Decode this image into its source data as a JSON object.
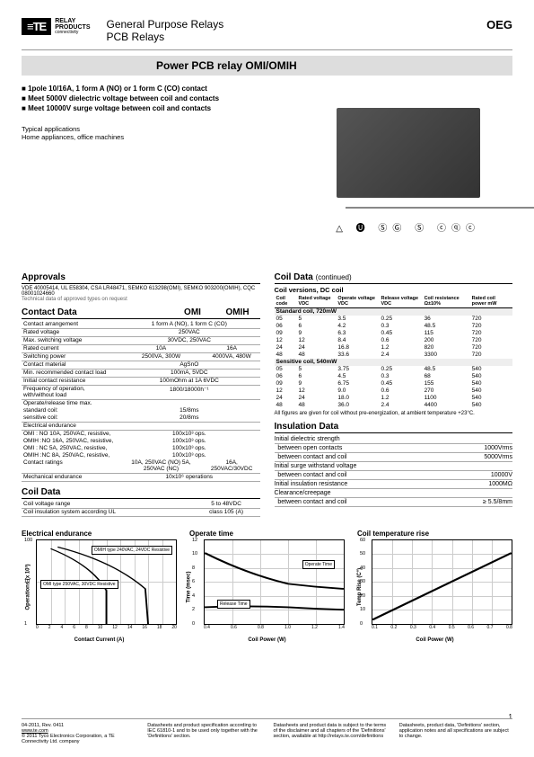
{
  "header": {
    "brand_te": "≡TE",
    "brand_conn": "connectivity",
    "brand_relay": "RELAY\nPRODUCTS",
    "category1": "General Purpose Relays",
    "category2": "PCB Relays",
    "series": "OEG"
  },
  "title": "Power PCB relay OMI/OMIH",
  "features": [
    "1pole 10/16A, 1 form A (NO) or 1 form C (CO) contact",
    "Meet 5000V dielectric voltage between coil and contacts",
    "Meet 10000V surge voltage between coil and contacts"
  ],
  "typical": {
    "h": "Typical applications",
    "txt": "Home appliances, office machines"
  },
  "cert_icons": "△ 🅤 ⓈⒼ Ⓢ ⓒⓠⓒ",
  "approvals": {
    "h": "Approvals",
    "txt": "VDE 40005414, UL E58304, CSA LR48471, SEMKO 613298(OMI), SEMKO 903200(OMIH), CQC 08001024660",
    "note": "Technical data of approved types on request"
  },
  "contact": {
    "h": "Contact Data",
    "col1": "OMI",
    "col2": "OMIH",
    "rows": [
      [
        "Contact arrangement",
        "1 form A (NO), 1 form C (CO)"
      ],
      [
        "Rated voltage",
        "250VAC"
      ],
      [
        "Max. switching voltage",
        "30VDC, 250VAC"
      ],
      [
        "Rated current",
        "10A",
        "16A"
      ],
      [
        "Switching power",
        "2500VA, 300W",
        "4000VA, 480W"
      ],
      [
        "Contact material",
        "AgSnO"
      ],
      [
        "Min. recommended contact load",
        "100mA, 5VDC"
      ],
      [
        "Initial contact resistance",
        "100mOhm at 1A 6VDC"
      ],
      [
        "Frequency of operation, with/without load",
        "1800/18000h⁻¹"
      ]
    ],
    "oprel_h": "Operate/release time max.",
    "oprel": [
      [
        "  standard coil:",
        "15/8ms"
      ],
      [
        "  sensitive coil:",
        "20/8ms"
      ]
    ],
    "endur_h": "Electrical endurance",
    "endur": [
      [
        "  OMI : NO 10A, 250VAC, resistive,",
        "100x10³ ops."
      ],
      [
        "  OMIH :NO 16A, 250VAC, resistive,",
        "100x10³ ops."
      ],
      [
        "  OMI : NC 5A, 250VAC, resistive,",
        "100x10³ ops."
      ],
      [
        "  OMIH :NC 8A, 250VAC, resistive,",
        "100x10³ ops."
      ]
    ],
    "ratings": [
      "Contact ratings",
      "10A, 250VAC (NO) 5A, 250VAC (NC)",
      "16A, 250VAC/30VDC"
    ],
    "mech": [
      "Mechanical endurance",
      "10x10⁶ operations"
    ]
  },
  "coil1": {
    "h": "Coil Data",
    "rows": [
      [
        "Coil voltage range",
        "5 to 48VDC"
      ],
      [
        "Coil insulation system according UL",
        "class 105 (A)"
      ]
    ]
  },
  "coil2": {
    "h": "Coil Data",
    "cont": "(continued)",
    "sub": "Coil versions, DC coil",
    "cols": [
      "Coil code",
      "Rated voltage VDC",
      "Operate voltage VDC",
      "Release voltage VDC",
      "Coil resistance Ω±10%",
      "Rated coil power mW"
    ],
    "std_h": "Standard coil, 720mW",
    "std": [
      [
        "05",
        "5",
        "3.5",
        "0.25",
        "36",
        "720"
      ],
      [
        "06",
        "6",
        "4.2",
        "0.3",
        "48.5",
        "720"
      ],
      [
        "09",
        "9",
        "6.3",
        "0.45",
        "115",
        "720"
      ],
      [
        "12",
        "12",
        "8.4",
        "0.6",
        "200",
        "720"
      ],
      [
        "24",
        "24",
        "16.8",
        "1.2",
        "820",
        "720"
      ],
      [
        "48",
        "48",
        "33.6",
        "2.4",
        "3300",
        "720"
      ]
    ],
    "sens_h": "Sensitive coil, 540mW",
    "sens": [
      [
        "05",
        "5",
        "3.75",
        "0.25",
        "48.5",
        "540"
      ],
      [
        "06",
        "6",
        "4.5",
        "0.3",
        "68",
        "540"
      ],
      [
        "09",
        "9",
        "6.75",
        "0.45",
        "155",
        "540"
      ],
      [
        "12",
        "12",
        "9.0",
        "0.6",
        "270",
        "540"
      ],
      [
        "24",
        "24",
        "18.0",
        "1.2",
        "1100",
        "540"
      ],
      [
        "48",
        "48",
        "36.0",
        "2.4",
        "4400",
        "540"
      ]
    ],
    "note": "All figures are given for coil without pre-energization, at ambient temperature +23°C."
  },
  "insulation": {
    "h": "Insulation Data",
    "rows": [
      [
        "Initial dielectric strength",
        ""
      ],
      [
        "  between open contacts",
        "1000Vrms"
      ],
      [
        "  between contact and coil",
        "5000Vrms"
      ],
      [
        "Initial surge withstand voltage",
        ""
      ],
      [
        "  between contact and coil",
        "10000V"
      ],
      [
        "Initial insulation resistance",
        "1000MΩ"
      ],
      [
        "Clearance/creepage",
        ""
      ],
      [
        "  between contact and coil",
        "≥ 5.5/8mm"
      ]
    ]
  },
  "charts": {
    "c1": {
      "title": "Electrical endurance",
      "ylabel": "Operations (x 10³)",
      "xlabel": "Contact Current (A)",
      "xticks": [
        "0",
        "2",
        "4",
        "6",
        "8",
        "10",
        "12",
        "14",
        "16",
        "18",
        "20"
      ],
      "yticks": [
        "1",
        "10",
        "100"
      ],
      "label1": "OMIH type 240VAC, 24VDC Resistive",
      "label2": "OMI type 250VAC, 30VDC Resistive",
      "line_color": "#000",
      "line_width": 1.5
    },
    "c2": {
      "title": "Operate time",
      "ylabel": "Time (msec)",
      "xlabel": "Coil Power (W)",
      "xticks": [
        "0.4",
        "0.6",
        "0.8",
        "1.0",
        "1.2",
        "1.4"
      ],
      "yticks": [
        "0",
        "2",
        "4",
        "6",
        "8",
        "10",
        "12"
      ],
      "label1": "Operate Time",
      "label2": "Release Time",
      "line_color": "#000",
      "line_width": 2
    },
    "c3": {
      "title": "Coil temperature rise",
      "ylabel": "Temp Rise (C°)",
      "xlabel": "Coil Power (W)",
      "xticks": [
        "0.1",
        "0.2",
        "0.3",
        "0.4",
        "0.5",
        "0.6",
        "0.7",
        "0.8"
      ],
      "yticks": [
        "0",
        "10",
        "20",
        "30",
        "40",
        "50",
        "60"
      ],
      "line_color": "#000",
      "line_width": 2
    }
  },
  "footer": {
    "c1a": "04-2011, Rev. 0411",
    "c1b": "www.te.com",
    "c1c": "© 2011 Tyco Electronics Corporation, a TE Connectivity Ltd. company",
    "c2": "Datasheets and product specification according to IEC 61810-1 and to be used only together with the 'Definitions' section.",
    "c3": "Datasheets and product data is subject to the terms of the disclaimer and all chapters of the 'Definitions' section, available at http://relays.te.com/definitions",
    "c4": "Datasheets, product data, 'Definitions' section, application notes and all specifications are subject to change."
  },
  "page": "1"
}
